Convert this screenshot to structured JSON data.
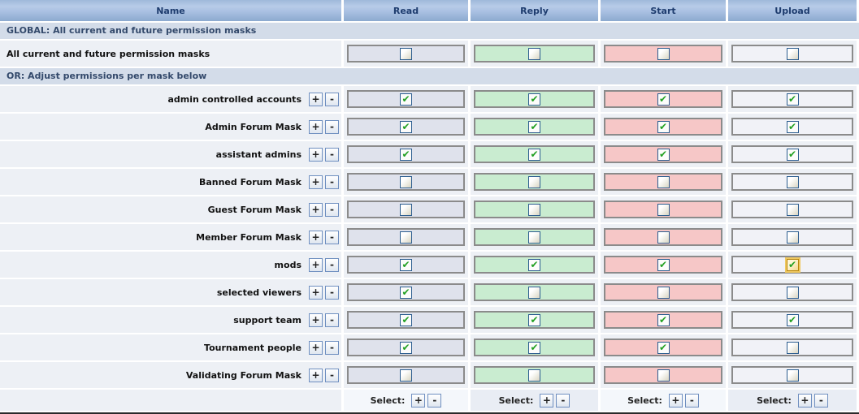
{
  "header": {
    "columns": [
      "Name",
      "Read",
      "Reply",
      "Start",
      "Upload"
    ]
  },
  "sections": {
    "global_label": "GLOBAL: All current and future permission masks",
    "or_label": "OR: Adjust permissions per mask below"
  },
  "global_row": {
    "name": "All current and future permission masks",
    "read": false,
    "reply": false,
    "start": false,
    "upload": false
  },
  "masks": [
    {
      "name": "admin controlled accounts",
      "read": true,
      "reply": true,
      "start": true,
      "upload": true
    },
    {
      "name": "Admin Forum Mask",
      "read": true,
      "reply": true,
      "start": true,
      "upload": true
    },
    {
      "name": "assistant admins",
      "read": true,
      "reply": true,
      "start": true,
      "upload": true
    },
    {
      "name": "Banned Forum Mask",
      "read": false,
      "reply": false,
      "start": false,
      "upload": false
    },
    {
      "name": "Guest Forum Mask",
      "read": false,
      "reply": false,
      "start": false,
      "upload": false
    },
    {
      "name": "Member Forum Mask",
      "read": false,
      "reply": false,
      "start": false,
      "upload": false
    },
    {
      "name": "mods",
      "read": true,
      "reply": true,
      "start": true,
      "upload": true,
      "upload_focused": true
    },
    {
      "name": "selected viewers",
      "read": true,
      "reply": false,
      "start": false,
      "upload": false
    },
    {
      "name": "support team",
      "read": true,
      "reply": true,
      "start": true,
      "upload": true
    },
    {
      "name": "Tournament people",
      "read": true,
      "reply": true,
      "start": true,
      "upload": false
    },
    {
      "name": "Validating Forum Mask",
      "read": false,
      "reply": false,
      "start": false,
      "upload": false
    }
  ],
  "row_buttons": {
    "plus": "+",
    "minus": "-"
  },
  "footer": {
    "select_label": "Select:",
    "plus_label": "+",
    "minus_label": "-"
  },
  "icons": {
    "check_glyph": "✔"
  },
  "colors": {
    "header_gradient_top": "#9fb9da",
    "header_gradient_bottom": "#8caacf",
    "header_text": "#1e3c6e",
    "section_bg": "#d3dce9",
    "section_text": "#33496b",
    "row_bg": "#edf0f5",
    "read_well": "#dfe2ec",
    "reply_well": "#c9ecd0",
    "start_well": "#f6c7c7",
    "upload_well": "#f1f2f7",
    "well_border": "#8b8b8b",
    "checkbox_border": "#2c5d8f",
    "check_color": "#22a022",
    "focus_ring": "#eec75f"
  }
}
